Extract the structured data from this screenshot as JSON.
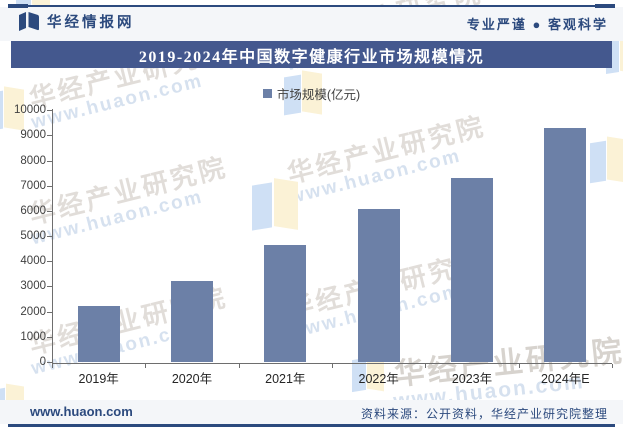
{
  "header": {
    "brand": "华经情报网",
    "tagline": "专业严谨 ● 客观科学"
  },
  "title": "2019-2024年中国数字健康行业市场规模情况",
  "legend": {
    "label": "市场规模(亿元)"
  },
  "chart_data": {
    "type": "bar",
    "title": "2019-2024年中国数字健康行业市场规模情况",
    "series_name": "市场规模(亿元)",
    "categories": [
      "2019年",
      "2020年",
      "2021年",
      "2022年",
      "2023年",
      "2024年E"
    ],
    "values": [
      2230,
      3230,
      4680,
      6090,
      7330,
      9310
    ],
    "unit": "亿元",
    "ylim": [
      0,
      10000
    ],
    "yticks": [
      0,
      1000,
      2000,
      3000,
      4000,
      5000,
      6000,
      7000,
      8000,
      9000,
      10000
    ],
    "grid": false,
    "legend_position": "top-center",
    "bar_color": "#6c80a7"
  },
  "footer": {
    "site": "www.huaon.com",
    "source": "资料来源：公开资料，华经产业研究院整理"
  },
  "watermark": {
    "line1": "华经产业研究院",
    "line2": "www.huaon.com"
  },
  "colors": {
    "navy": "#2c4a7e",
    "banner_bg": "#44588e",
    "bar": "#6c80a7",
    "band_bg": "#f4f6f9",
    "axis": "#6e6e6e",
    "wm_blue": "#cfe0f5",
    "wm_cream": "#fbf2d6"
  }
}
